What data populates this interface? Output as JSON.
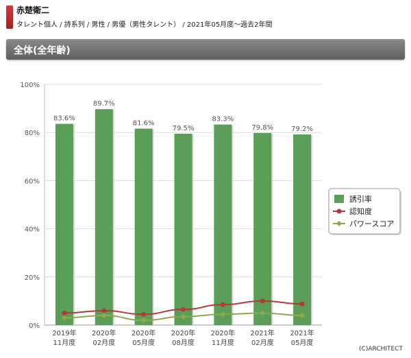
{
  "header": {
    "name": "赤楚衛二",
    "breadcrumb": "タレント個人 / 詩系列 / 男性 / 男優（男性タレント） / 2021年05月度～過去2年間"
  },
  "section": {
    "title": "全体(全年齢)"
  },
  "colors": {
    "bar": "#5a9e57",
    "line_awareness": "#b23a3a",
    "line_power": "#8ea84a"
  },
  "chart_data": {
    "type": "bar",
    "categories": [
      "2019年\n11月度",
      "2020年\n02月度",
      "2020年\n05月度",
      "2020年\n08月度",
      "2020年\n11月度",
      "2021年\n02月度",
      "2021年\n05月度"
    ],
    "series": [
      {
        "name": "誘引率",
        "type": "bar",
        "values": [
          83.6,
          89.7,
          81.6,
          79.5,
          83.3,
          79.8,
          79.2
        ]
      },
      {
        "name": "認知度",
        "type": "line",
        "values": [
          5.0,
          6.0,
          4.5,
          6.5,
          8.5,
          10.0,
          8.8
        ]
      },
      {
        "name": "パワースコア",
        "type": "line",
        "values": [
          3.0,
          4.0,
          2.0,
          3.5,
          4.5,
          5.0,
          4.0
        ]
      }
    ],
    "data_labels": [
      "83.6%",
      "89.7%",
      "81.6%",
      "79.5%",
      "83.3%",
      "79.8%",
      "79.2%"
    ],
    "ylim": [
      0,
      100
    ],
    "yticks": [
      "0%",
      "20%",
      "40%",
      "60%",
      "80%",
      "100%"
    ],
    "legend_position": "right"
  },
  "footer": {
    "credit": "(C)ARCHITECT"
  }
}
